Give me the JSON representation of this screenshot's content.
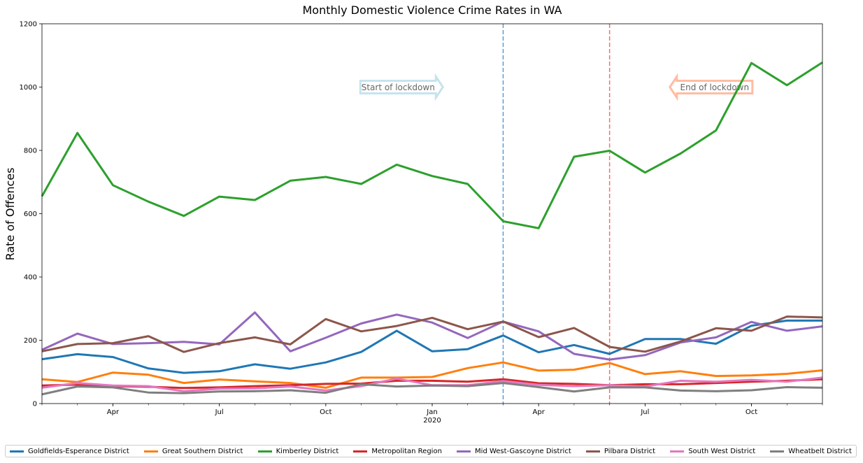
{
  "chart_data": {
    "type": "line",
    "title": "Monthly Domestic Violence Crime Rates in WA",
    "xlabel": "",
    "ylabel": "Rate of Offences",
    "ylim": [
      0,
      1200
    ],
    "yticks": [
      0,
      200,
      400,
      600,
      800,
      1000,
      1200
    ],
    "x": [
      "2019-02",
      "2019-03",
      "2019-04",
      "2019-05",
      "2019-06",
      "2019-07",
      "2019-08",
      "2019-09",
      "2019-10",
      "2019-11",
      "2019-12",
      "2020-01",
      "2020-02",
      "2020-03",
      "2020-04",
      "2020-05",
      "2020-06",
      "2020-07",
      "2020-08",
      "2020-09",
      "2020-10",
      "2020-11",
      "2020-12"
    ],
    "xticks": [
      {
        "x": "2019-04",
        "label": "Apr",
        "sub": ""
      },
      {
        "x": "2019-07",
        "label": "Jul",
        "sub": ""
      },
      {
        "x": "2019-10",
        "label": "Oct",
        "sub": ""
      },
      {
        "x": "2020-01",
        "label": "Jan",
        "sub": "2020"
      },
      {
        "x": "2020-04",
        "label": "Apr",
        "sub": ""
      },
      {
        "x": "2020-07",
        "label": "Jul",
        "sub": ""
      },
      {
        "x": "2020-10",
        "label": "Oct",
        "sub": ""
      }
    ],
    "legend_position": "bottom",
    "grid": false,
    "series": [
      {
        "name": "Goldfields-Esperance District",
        "color": "#1f77b4",
        "values": [
          140,
          156,
          147,
          111,
          97,
          102,
          124,
          110,
          130,
          163,
          230,
          165,
          172,
          215,
          162,
          185,
          157,
          204,
          204,
          189,
          246,
          262,
          262
        ]
      },
      {
        "name": "Great Southern District",
        "color": "#ff7f0e",
        "values": [
          77,
          68,
          98,
          91,
          65,
          76,
          70,
          65,
          50,
          82,
          82,
          84,
          112,
          130,
          104,
          107,
          128,
          93,
          102,
          87,
          89,
          94,
          105
        ]
      },
      {
        "name": "Kimberley District",
        "color": "#2ca02c",
        "values": [
          655,
          855,
          690,
          638,
          593,
          654,
          643,
          704,
          716,
          694,
          755,
          719,
          694,
          576,
          554,
          780,
          799,
          730,
          790,
          863,
          1076,
          1006,
          1078
        ]
      },
      {
        "name": "Metropolitan Region",
        "color": "#d62728",
        "values": [
          57,
          60,
          55,
          53,
          49,
          51,
          55,
          58,
          62,
          63,
          72,
          72,
          69,
          77,
          64,
          62,
          58,
          61,
          61,
          65,
          69,
          72,
          77
        ]
      },
      {
        "name": "Mid West-Gascoyne District",
        "color": "#9467bd",
        "values": [
          170,
          221,
          188,
          191,
          195,
          187,
          288,
          165,
          208,
          253,
          281,
          256,
          207,
          259,
          228,
          157,
          139,
          153,
          193,
          209,
          258,
          230,
          244
        ]
      },
      {
        "name": "Pilbara District",
        "color": "#8c564b",
        "values": [
          165,
          188,
          191,
          213,
          163,
          191,
          209,
          187,
          267,
          228,
          245,
          271,
          235,
          259,
          210,
          239,
          179,
          164,
          196,
          238,
          230,
          275,
          272
        ]
      },
      {
        "name": "South West District",
        "color": "#e377c2",
        "values": [
          50,
          65,
          57,
          55,
          39,
          47,
          48,
          54,
          41,
          55,
          79,
          58,
          58,
          71,
          59,
          55,
          58,
          54,
          72,
          69,
          75,
          69,
          82
        ]
      },
      {
        "name": "Wheatbelt District",
        "color": "#7f7f7f",
        "values": [
          29,
          54,
          51,
          35,
          33,
          38,
          39,
          42,
          34,
          61,
          54,
          57,
          55,
          65,
          52,
          38,
          51,
          51,
          41,
          39,
          42,
          52,
          50
        ]
      }
    ],
    "vlines": [
      {
        "x": "2020-03",
        "color": "#5b9bd5",
        "style": "dashed"
      },
      {
        "x": "2020-06",
        "color": "#ff6b6b",
        "style": "dashed"
      }
    ],
    "annotations": [
      {
        "text": "Start of lockdown",
        "x": "2019-12",
        "y": 1000,
        "arrow": "right",
        "color": "#add8e6"
      },
      {
        "text": "End of lockdown",
        "x": "2020-09",
        "y": 1000,
        "arrow": "left",
        "color": "#ffa07a"
      }
    ]
  }
}
